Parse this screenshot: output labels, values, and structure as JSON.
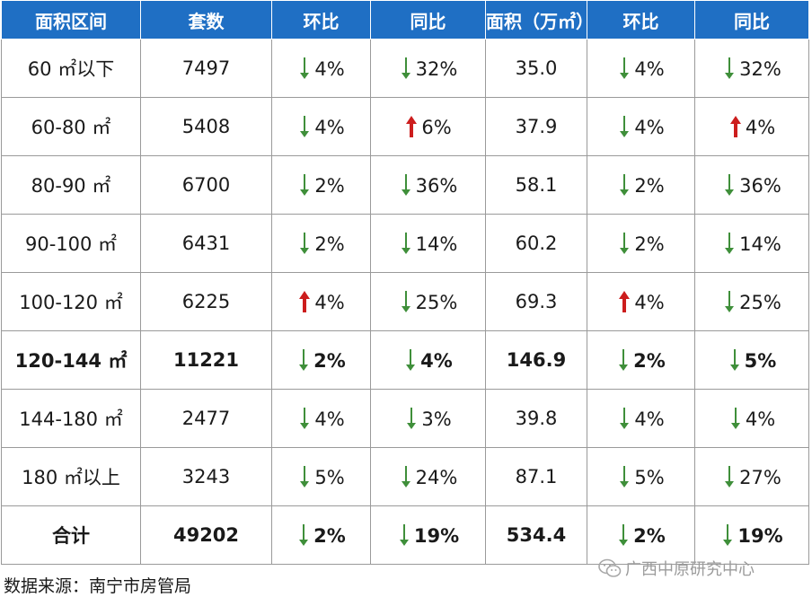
{
  "headers": [
    "面积区间",
    "套数",
    "环比",
    "同比",
    "面积（万㎡）",
    "环比",
    "同比"
  ],
  "rows": [
    {
      "range": "60 ㎡以下",
      "count": "7497",
      "count_mom": {
        "dir": "down",
        "value": "4%"
      },
      "count_yoy": {
        "dir": "down",
        "value": "32%"
      },
      "area": "35.0",
      "area_mom": {
        "dir": "down",
        "value": "4%"
      },
      "area_yoy": {
        "dir": "down",
        "value": "32%"
      },
      "bold": false
    },
    {
      "range": "60-80 ㎡",
      "count": "5408",
      "count_mom": {
        "dir": "down",
        "value": "4%"
      },
      "count_yoy": {
        "dir": "up",
        "value": "6%"
      },
      "area": "37.9",
      "area_mom": {
        "dir": "down",
        "value": "4%"
      },
      "area_yoy": {
        "dir": "up",
        "value": "4%"
      },
      "bold": false
    },
    {
      "range": "80-90 ㎡",
      "count": "6700",
      "count_mom": {
        "dir": "down",
        "value": "2%"
      },
      "count_yoy": {
        "dir": "down",
        "value": "36%"
      },
      "area": "58.1",
      "area_mom": {
        "dir": "down",
        "value": "2%"
      },
      "area_yoy": {
        "dir": "down",
        "value": "36%"
      },
      "bold": false
    },
    {
      "range": "90-100 ㎡",
      "count": "6431",
      "count_mom": {
        "dir": "down",
        "value": "2%"
      },
      "count_yoy": {
        "dir": "down",
        "value": "14%"
      },
      "area": "60.2",
      "area_mom": {
        "dir": "down",
        "value": "2%"
      },
      "area_yoy": {
        "dir": "down",
        "value": "14%"
      },
      "bold": false
    },
    {
      "range": "100-120 ㎡",
      "count": "6225",
      "count_mom": {
        "dir": "up",
        "value": "4%"
      },
      "count_yoy": {
        "dir": "down",
        "value": "25%"
      },
      "area": "69.3",
      "area_mom": {
        "dir": "up",
        "value": "4%"
      },
      "area_yoy": {
        "dir": "down",
        "value": "25%"
      },
      "bold": false
    },
    {
      "range": "120-144 ㎡",
      "count": "11221",
      "count_mom": {
        "dir": "down",
        "value": "2%"
      },
      "count_yoy": {
        "dir": "down",
        "value": "4%"
      },
      "area": "146.9",
      "area_mom": {
        "dir": "down",
        "value": "2%"
      },
      "area_yoy": {
        "dir": "down",
        "value": "5%"
      },
      "bold": true
    },
    {
      "range": "144-180 ㎡",
      "count": "2477",
      "count_mom": {
        "dir": "down",
        "value": "4%"
      },
      "count_yoy": {
        "dir": "down",
        "value": "3%"
      },
      "area": "39.8",
      "area_mom": {
        "dir": "down",
        "value": "4%"
      },
      "area_yoy": {
        "dir": "down",
        "value": "4%"
      },
      "bold": false
    },
    {
      "range": "180 ㎡以上",
      "count": "3243",
      "count_mom": {
        "dir": "down",
        "value": "5%"
      },
      "count_yoy": {
        "dir": "down",
        "value": "24%"
      },
      "area": "87.1",
      "area_mom": {
        "dir": "down",
        "value": "5%"
      },
      "area_yoy": {
        "dir": "down",
        "value": "27%"
      },
      "bold": false
    }
  ],
  "total": {
    "range": "合计",
    "count": "49202",
    "count_mom": {
      "dir": "down",
      "value": "2%"
    },
    "count_yoy": {
      "dir": "down",
      "value": "19%"
    },
    "area": "534.4",
    "area_mom": {
      "dir": "down",
      "value": "2%"
    },
    "area_yoy": {
      "dir": "down",
      "value": "19%"
    }
  },
  "footer": "数据来源：南宁市房管局",
  "watermark": "广西中原研究中心",
  "colors": {
    "header_bg": "#1f6fc4",
    "down_arrow": "#3f8f3a",
    "up_arrow": "#cc1d1d"
  }
}
